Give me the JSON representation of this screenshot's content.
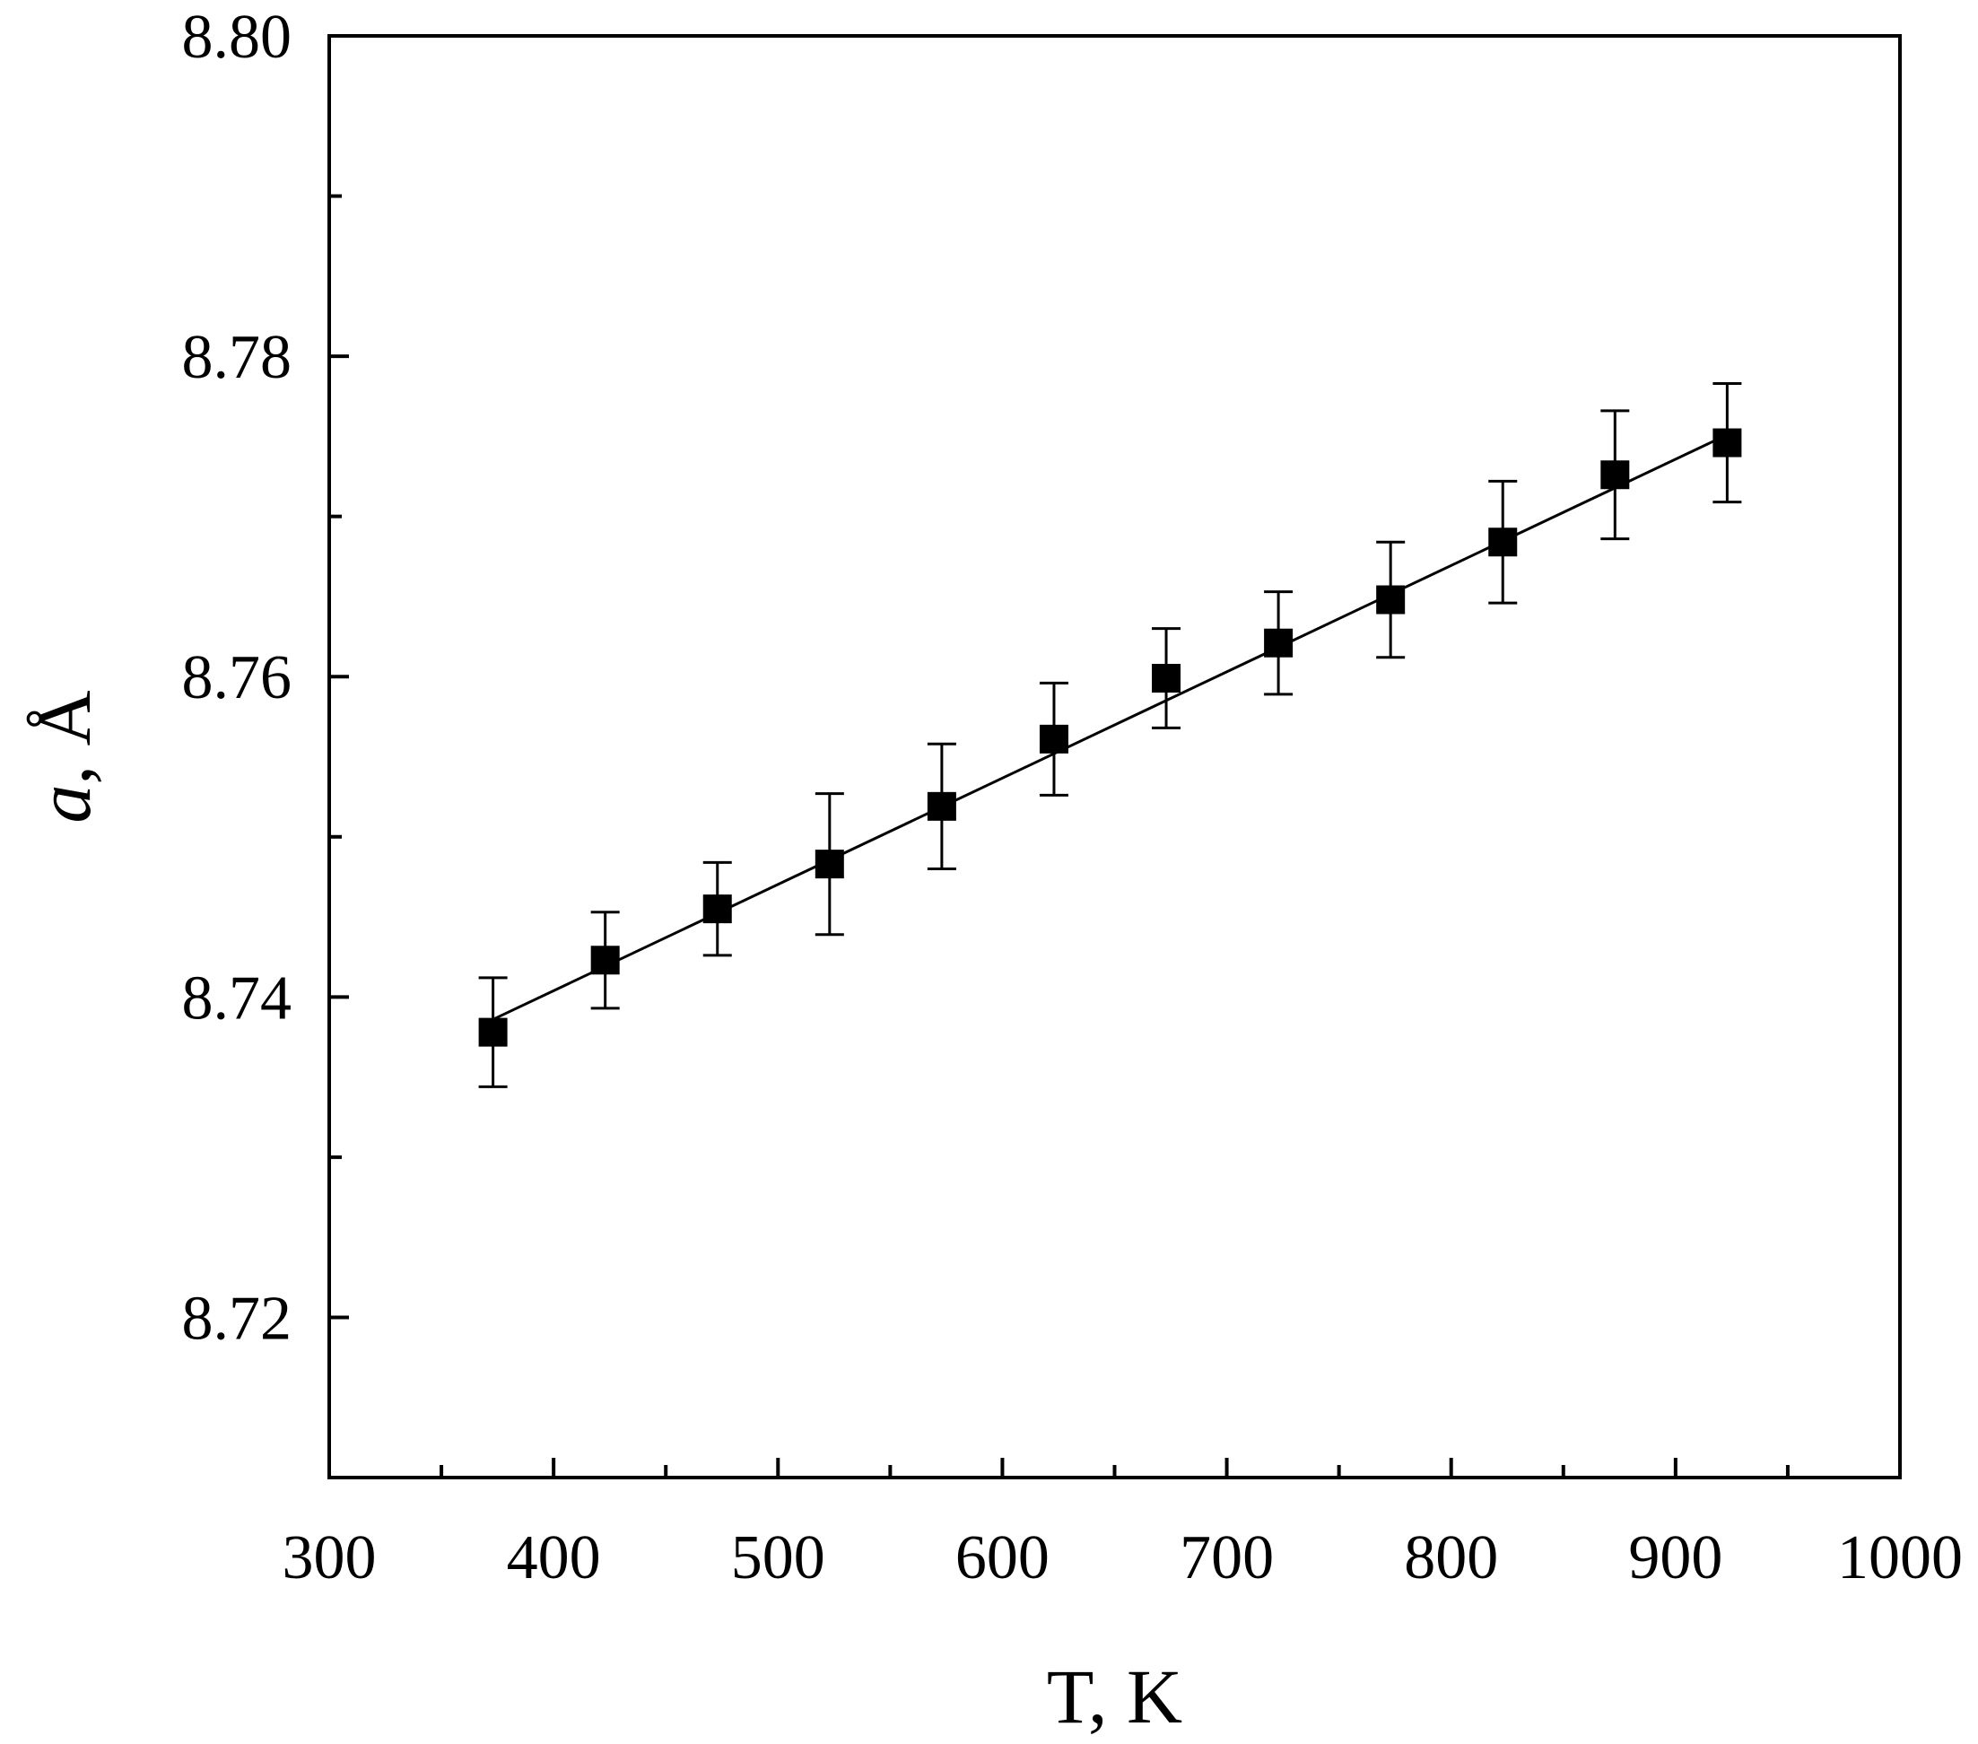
{
  "chart_data": {
    "type": "scatter",
    "xlabel": "T, K",
    "ylabel_italic": "a",
    "ylabel_rest": ", Å",
    "xlim": [
      300,
      1000
    ],
    "ylim": [
      8.71,
      8.8
    ],
    "x_ticks": [
      300,
      400,
      500,
      600,
      700,
      800,
      900,
      1000
    ],
    "x_tick_labels": [
      "300",
      "400",
      "500",
      "600",
      "700",
      "800",
      "900",
      "1000"
    ],
    "x_minor_ticks": [
      350,
      450,
      550,
      650,
      750,
      850,
      950
    ],
    "y_ticks": [
      8.72,
      8.74,
      8.76,
      8.78,
      8.8
    ],
    "y_tick_labels": [
      "8.72",
      "8.74",
      "8.76",
      "8.78",
      "8.80"
    ],
    "y_minor_ticks": [
      8.71,
      8.73,
      8.75,
      8.77,
      8.79
    ],
    "grid": false,
    "legend": "none",
    "series": [
      {
        "marker": "square",
        "color": "#000000",
        "points": [
          {
            "x": 373,
            "y": 8.7378,
            "err": 0.0034
          },
          {
            "x": 423,
            "y": 8.7423,
            "err": 0.003
          },
          {
            "x": 473,
            "y": 8.7455,
            "err": 0.0029
          },
          {
            "x": 523,
            "y": 8.7483,
            "err": 0.0044
          },
          {
            "x": 573,
            "y": 8.7519,
            "err": 0.0039
          },
          {
            "x": 623,
            "y": 8.7561,
            "err": 0.0035
          },
          {
            "x": 673,
            "y": 8.7599,
            "err": 0.0031
          },
          {
            "x": 723,
            "y": 8.7621,
            "err": 0.0032
          },
          {
            "x": 773,
            "y": 8.7648,
            "err": 0.0036
          },
          {
            "x": 823,
            "y": 8.7684,
            "err": 0.0038
          },
          {
            "x": 873,
            "y": 8.7726,
            "err": 0.004
          },
          {
            "x": 923,
            "y": 8.7746,
            "err": 0.0037
          }
        ]
      }
    ],
    "fit_line": {
      "x": [
        373,
        923
      ],
      "y": [
        8.7386,
        8.7751
      ]
    }
  }
}
